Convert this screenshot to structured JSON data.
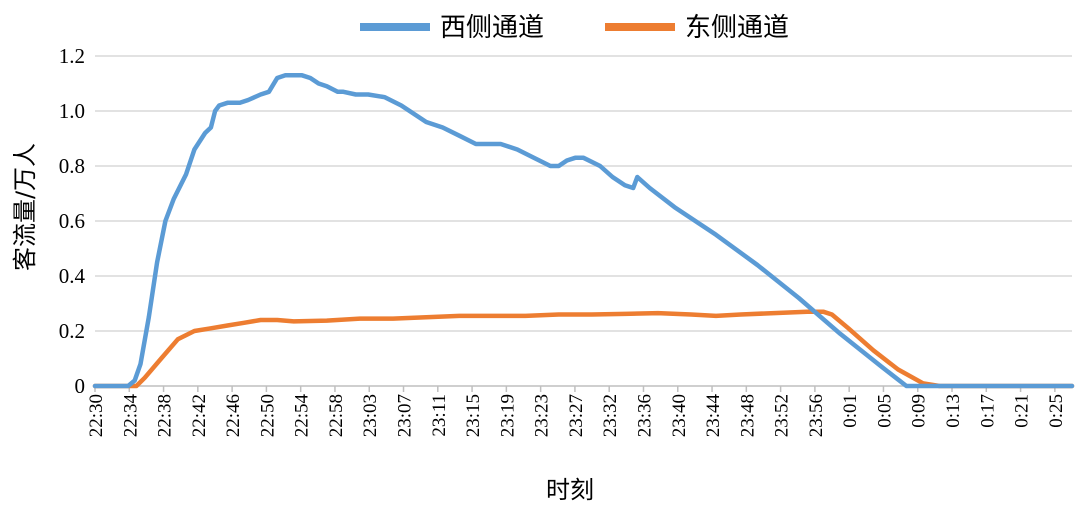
{
  "chart_data": {
    "type": "line",
    "xlabel": "时刻",
    "ylabel": "客流量/万人",
    "ylim": [
      0,
      1.2
    ],
    "yticks": [
      "0",
      "0.2",
      "0.4",
      "0.6",
      "0.8",
      "1.0",
      "1.2"
    ],
    "grid": "horizontal",
    "legend": "top",
    "x_tick_labels": [
      "22:30",
      "22:34",
      "22:38",
      "22:42",
      "22:46",
      "22:50",
      "22:54",
      "22:58",
      "23:03",
      "23:07",
      "23:11",
      "23:15",
      "23:19",
      "23:23",
      "23:27",
      "23:32",
      "23:36",
      "23:40",
      "23:44",
      "23:48",
      "23:52",
      "23:56",
      "0:01",
      "0:05",
      "0:09",
      "0:13",
      "0:17",
      "0:21",
      "0:25"
    ],
    "x_range_minutes": [
      0,
      118
    ],
    "series": [
      {
        "name": "西侧通道",
        "color": "#5b9bd5",
        "points": [
          [
            0,
            0
          ],
          [
            4,
            0
          ],
          [
            4.8,
            0.02
          ],
          [
            5.5,
            0.08
          ],
          [
            6.5,
            0.25
          ],
          [
            7.5,
            0.45
          ],
          [
            8.5,
            0.6
          ],
          [
            9.5,
            0.68
          ],
          [
            11,
            0.77
          ],
          [
            12,
            0.86
          ],
          [
            13.3,
            0.92
          ],
          [
            14,
            0.94
          ],
          [
            14.5,
            1.0
          ],
          [
            15,
            1.02
          ],
          [
            16,
            1.03
          ],
          [
            17.5,
            1.03
          ],
          [
            18.5,
            1.04
          ],
          [
            20,
            1.06
          ],
          [
            21,
            1.07
          ],
          [
            22,
            1.12
          ],
          [
            23,
            1.13
          ],
          [
            25,
            1.13
          ],
          [
            26,
            1.12
          ],
          [
            27,
            1.1
          ],
          [
            28,
            1.09
          ],
          [
            29.3,
            1.07
          ],
          [
            30,
            1.07
          ],
          [
            31.5,
            1.06
          ],
          [
            33,
            1.06
          ],
          [
            35,
            1.05
          ],
          [
            37,
            1.02
          ],
          [
            38,
            1.0
          ],
          [
            40,
            0.96
          ],
          [
            42,
            0.94
          ],
          [
            44,
            0.91
          ],
          [
            46,
            0.88
          ],
          [
            48,
            0.88
          ],
          [
            49,
            0.88
          ],
          [
            51,
            0.86
          ],
          [
            53,
            0.83
          ],
          [
            55,
            0.8
          ],
          [
            56,
            0.8
          ],
          [
            57,
            0.82
          ],
          [
            58,
            0.83
          ],
          [
            59,
            0.83
          ],
          [
            61,
            0.8
          ],
          [
            62.5,
            0.76
          ],
          [
            64,
            0.73
          ],
          [
            65,
            0.72
          ],
          [
            65.5,
            0.76
          ],
          [
            67,
            0.72
          ],
          [
            70,
            0.65
          ],
          [
            75,
            0.55
          ],
          [
            80,
            0.44
          ],
          [
            85,
            0.32
          ],
          [
            90,
            0.19
          ],
          [
            95,
            0.07
          ],
          [
            98,
            0
          ],
          [
            118,
            0
          ]
        ]
      },
      {
        "name": "东侧通道",
        "color": "#ed7d31",
        "points": [
          [
            0,
            0
          ],
          [
            5,
            0
          ],
          [
            6,
            0.03
          ],
          [
            8,
            0.1
          ],
          [
            10,
            0.17
          ],
          [
            12,
            0.2
          ],
          [
            14,
            0.21
          ],
          [
            16,
            0.22
          ],
          [
            18,
            0.23
          ],
          [
            20,
            0.24
          ],
          [
            22,
            0.24
          ],
          [
            24,
            0.235
          ],
          [
            28,
            0.238
          ],
          [
            32,
            0.245
          ],
          [
            36,
            0.245
          ],
          [
            40,
            0.25
          ],
          [
            44,
            0.255
          ],
          [
            48,
            0.255
          ],
          [
            52,
            0.255
          ],
          [
            56,
            0.26
          ],
          [
            60,
            0.26
          ],
          [
            64,
            0.262
          ],
          [
            68,
            0.265
          ],
          [
            72,
            0.26
          ],
          [
            75,
            0.255
          ],
          [
            78,
            0.26
          ],
          [
            82,
            0.265
          ],
          [
            86,
            0.27
          ],
          [
            88,
            0.27
          ],
          [
            89,
            0.26
          ],
          [
            91,
            0.21
          ],
          [
            94,
            0.13
          ],
          [
            97,
            0.06
          ],
          [
            100,
            0.01
          ],
          [
            102,
            0
          ],
          [
            118,
            0
          ]
        ]
      }
    ]
  }
}
